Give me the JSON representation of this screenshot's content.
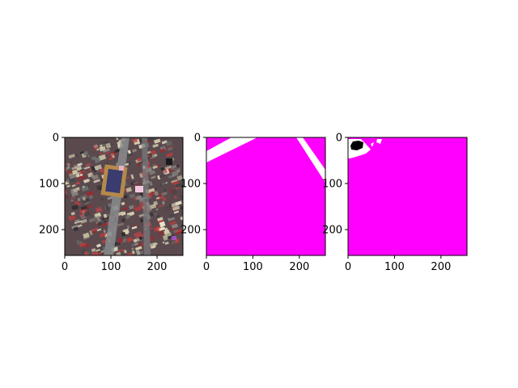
{
  "figure": {
    "background": "#ffffff",
    "panels": [
      {
        "id": "aerial-image",
        "content": "false-color satellite image of dense urban blocks with a sports field",
        "x_ticks": [
          "0",
          "100",
          "200"
        ],
        "y_ticks": [
          "0",
          "100",
          "200"
        ]
      },
      {
        "id": "mask-ground-truth",
        "content": "segmentation mask: magenta background with two white road strips",
        "x_ticks": [
          "0",
          "100",
          "200"
        ],
        "y_ticks": [
          "0",
          "100",
          "200"
        ]
      },
      {
        "id": "mask-prediction",
        "content": "segmentation mask: magenta background, small white and black blobs top-left",
        "x_ticks": [
          "0",
          "100",
          "200"
        ],
        "y_ticks": [
          "0",
          "100",
          "200"
        ]
      }
    ],
    "colors": {
      "mask_background": "#ff00ff",
      "mask_road": "#ffffff",
      "mask_other": "#000000"
    }
  }
}
